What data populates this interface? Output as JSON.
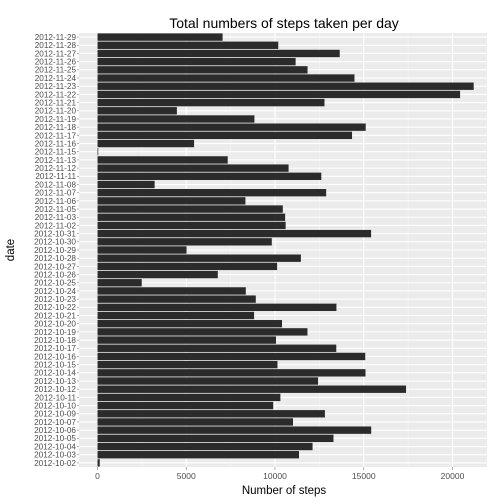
{
  "chart_data": {
    "type": "bar",
    "orientation": "horizontal",
    "title": "Total numbers of steps taken per day",
    "xlabel": "Number of steps",
    "ylabel": "date",
    "xlim": [
      0,
      21800
    ],
    "xticks": [
      0,
      5000,
      10000,
      15000,
      20000
    ],
    "grid": true,
    "bar_color": "#2b2b2b",
    "panel_color": "#ebebeb",
    "categories": [
      "2012-10-02",
      "2012-10-03",
      "2012-10-04",
      "2012-10-05",
      "2012-10-06",
      "2012-10-07",
      "2012-10-09",
      "2012-10-10",
      "2012-10-11",
      "2012-10-12",
      "2012-10-13",
      "2012-10-14",
      "2012-10-15",
      "2012-10-16",
      "2012-10-17",
      "2012-10-18",
      "2012-10-19",
      "2012-10-20",
      "2012-10-21",
      "2012-10-22",
      "2012-10-23",
      "2012-10-24",
      "2012-10-25",
      "2012-10-26",
      "2012-10-27",
      "2012-10-28",
      "2012-10-29",
      "2012-10-30",
      "2012-10-31",
      "2012-11-02",
      "2012-11-03",
      "2012-11-05",
      "2012-11-06",
      "2012-11-07",
      "2012-11-08",
      "2012-11-11",
      "2012-11-12",
      "2012-11-13",
      "2012-11-15",
      "2012-11-16",
      "2012-11-17",
      "2012-11-18",
      "2012-11-19",
      "2012-11-20",
      "2012-11-21",
      "2012-11-22",
      "2012-11-23",
      "2012-11-24",
      "2012-11-25",
      "2012-11-26",
      "2012-11-27",
      "2012-11-28",
      "2012-11-29"
    ],
    "values": [
      126,
      11352,
      12116,
      13294,
      15420,
      11015,
      12811,
      9900,
      10304,
      17382,
      12426,
      15098,
      10139,
      15084,
      13452,
      10056,
      11829,
      10395,
      8821,
      13460,
      8918,
      8355,
      2492,
      6778,
      10119,
      11458,
      5018,
      9819,
      15414,
      10600,
      10571,
      10439,
      8334,
      12883,
      3219,
      12608,
      10765,
      7336,
      41,
      5441,
      14339,
      15110,
      8841,
      4472,
      12787,
      20427,
      21194,
      14478,
      11834,
      11162,
      13646,
      10183,
      7047
    ]
  }
}
